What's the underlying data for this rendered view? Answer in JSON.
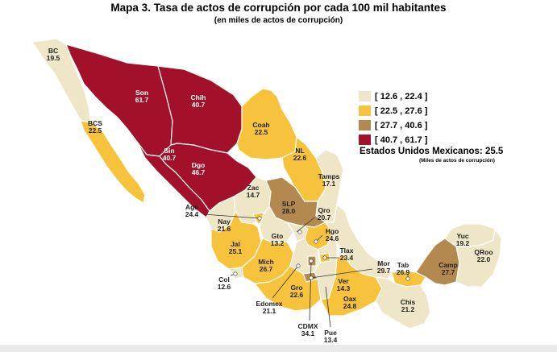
{
  "title": "Mapa 3. Tasa de actos de corrupción por cada 100 mil habitantes",
  "subtitle": "(en miles de actos de corrupción)",
  "legend": [
    {
      "label": "[ 12.6 , 22.4 ]",
      "color": "#EEE6C6"
    },
    {
      "label": "[ 22.5 , 27.6 ]",
      "color": "#F8C33C"
    },
    {
      "label": "[ 27.7 , 40.6 ]",
      "color": "#B4894F"
    },
    {
      "label": "[ 40.7 , 61.7 ]",
      "color": "#A31029"
    }
  ],
  "national": {
    "label": "Estados Unidos Mexicanos:",
    "value": "25.5",
    "units": "(Miles de actos de corrupción)"
  },
  "states": [
    {
      "id": "bc",
      "abbr": "BC",
      "value": "19.5",
      "class": 1
    },
    {
      "id": "bcs",
      "abbr": "BCS",
      "value": "22.5",
      "class": 2
    },
    {
      "id": "son",
      "abbr": "Son",
      "value": "61.7",
      "class": 4
    },
    {
      "id": "chih",
      "abbr": "Chih",
      "value": "40.7",
      "class": 4
    },
    {
      "id": "coah",
      "abbr": "Coah",
      "value": "22.5",
      "class": 2
    },
    {
      "id": "sin",
      "abbr": "Sin",
      "value": "40.7",
      "class": 4
    },
    {
      "id": "dgo",
      "abbr": "Dgo",
      "value": "46.7",
      "class": 4
    },
    {
      "id": "nl",
      "abbr": "NL",
      "value": "22.6",
      "class": 2
    },
    {
      "id": "tamps",
      "abbr": "Tamps",
      "value": "17.1",
      "class": 1
    },
    {
      "id": "zac",
      "abbr": "Zac",
      "value": "14.7",
      "class": 1
    },
    {
      "id": "slp",
      "abbr": "SLP",
      "value": "28.0",
      "class": 3
    },
    {
      "id": "ags",
      "abbr": "Ags",
      "value": "24.4",
      "class": 2
    },
    {
      "id": "nay",
      "abbr": "Nay",
      "value": "21.6",
      "class": 1
    },
    {
      "id": "jal",
      "abbr": "Jal",
      "value": "25.1",
      "class": 2
    },
    {
      "id": "gto",
      "abbr": "Gto",
      "value": "13.2",
      "class": 1
    },
    {
      "id": "qro",
      "abbr": "Qro",
      "value": "20.7",
      "class": 1
    },
    {
      "id": "hgo",
      "abbr": "Hgo",
      "value": "24.6",
      "class": 2
    },
    {
      "id": "col",
      "abbr": "Col",
      "value": "12.6",
      "class": 1
    },
    {
      "id": "mich",
      "abbr": "Mich",
      "value": "26.7",
      "class": 2
    },
    {
      "id": "edomex",
      "abbr": "Edomex",
      "value": "21.1",
      "class": 1
    },
    {
      "id": "cdmx",
      "abbr": "CDMX",
      "value": "34.1",
      "class": 3
    },
    {
      "id": "tlax",
      "abbr": "Tlax",
      "value": "23.4",
      "class": 2
    },
    {
      "id": "mor",
      "abbr": "Mor",
      "value": "29.7",
      "class": 3
    },
    {
      "id": "pue",
      "abbr": "Pue",
      "value": "13.4",
      "class": 1
    },
    {
      "id": "gro",
      "abbr": "Gro",
      "value": "22.6",
      "class": 2
    },
    {
      "id": "oax",
      "abbr": "Oax",
      "value": "24.8",
      "class": 2
    },
    {
      "id": "ver",
      "abbr": "Ver",
      "value": "14.3",
      "class": 1
    },
    {
      "id": "tab",
      "abbr": "Tab",
      "value": "26.9",
      "class": 2
    },
    {
      "id": "chis",
      "abbr": "Chis",
      "value": "21.2",
      "class": 1
    },
    {
      "id": "camp",
      "abbr": "Camp",
      "value": "27.7",
      "class": 3
    },
    {
      "id": "yuc",
      "abbr": "Yuc",
      "value": "19.2",
      "class": 1
    },
    {
      "id": "qroo",
      "abbr": "QRoo",
      "value": "22.0",
      "class": 1
    }
  ]
}
